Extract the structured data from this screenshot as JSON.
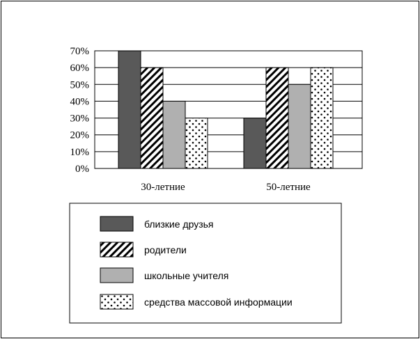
{
  "chart_data": {
    "type": "bar",
    "title": "",
    "xlabel": "",
    "ylabel": "",
    "ylim": [
      0,
      70
    ],
    "yticks": [
      0,
      10,
      20,
      30,
      40,
      50,
      60,
      70
    ],
    "ytick_labels": [
      "0%",
      "10%",
      "20%",
      "30%",
      "40%",
      "50%",
      "60%",
      "70%"
    ],
    "categories": [
      "30-летние",
      "50-летние"
    ],
    "grid": true,
    "legend_position": "bottom",
    "series": [
      {
        "name": "близкие друзья",
        "values": [
          70,
          30
        ],
        "fill": "#595959",
        "pattern": "solid-dark"
      },
      {
        "name": "родители",
        "values": [
          60,
          60
        ],
        "fill": "#ffffff",
        "pattern": "diagonal-stripes"
      },
      {
        "name": "школьные учителя",
        "values": [
          40,
          50
        ],
        "fill": "#b0b0b0",
        "pattern": "solid-light"
      },
      {
        "name": "средства массовой информации",
        "values": [
          30,
          60
        ],
        "fill": "#ffffff",
        "pattern": "dots"
      }
    ]
  }
}
